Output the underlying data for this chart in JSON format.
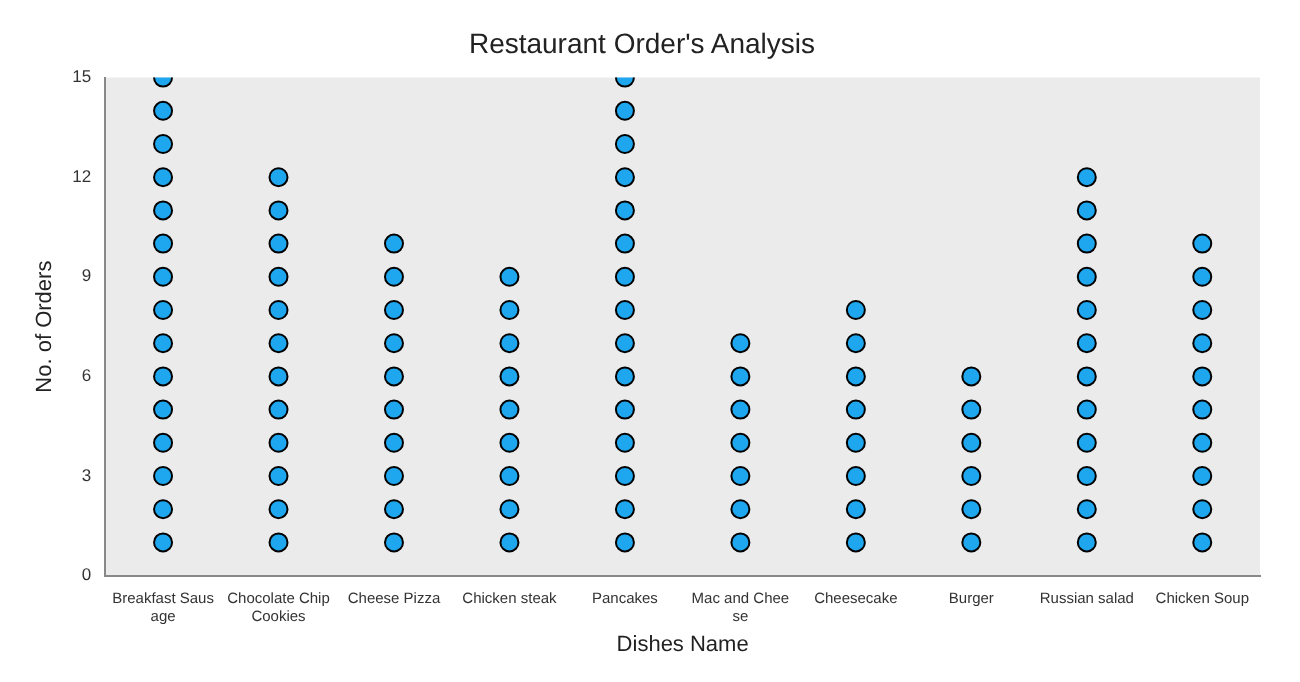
{
  "chart_data": {
    "type": "scatter",
    "title": "Restaurant Order's Analysis",
    "xlabel": "Dishes Name",
    "ylabel": "No. of Orders",
    "categories": [
      "Breakfast Saus\nage",
      "Chocolate Chip\nCookies",
      "Cheese Pizza",
      "Chicken steak",
      "Pancakes",
      "Mac and Chee\nse",
      "Cheesecake",
      "Burger",
      "Russian salad",
      "Chicken Soup"
    ],
    "ylim": [
      0,
      15
    ],
    "yticks": [
      0,
      3,
      6,
      9,
      12,
      15
    ],
    "grid": false,
    "legend": false,
    "marker": "circle",
    "series": [
      {
        "color": "#1ea7ef",
        "x": [
          "Breakfast Saus\nage",
          "Breakfast Saus\nage",
          "Breakfast Saus\nage",
          "Breakfast Saus\nage",
          "Breakfast Saus\nage",
          "Breakfast Saus\nage",
          "Breakfast Saus\nage",
          "Breakfast Saus\nage",
          "Breakfast Saus\nage",
          "Breakfast Saus\nage",
          "Breakfast Saus\nage",
          "Breakfast Saus\nage",
          "Breakfast Saus\nage",
          "Breakfast Saus\nage",
          "Breakfast Saus\nage",
          "Chocolate Chip\nCookies",
          "Chocolate Chip\nCookies",
          "Chocolate Chip\nCookies",
          "Chocolate Chip\nCookies",
          "Chocolate Chip\nCookies",
          "Chocolate Chip\nCookies",
          "Chocolate Chip\nCookies",
          "Chocolate Chip\nCookies",
          "Chocolate Chip\nCookies",
          "Chocolate Chip\nCookies",
          "Chocolate Chip\nCookies",
          "Chocolate Chip\nCookies",
          "Cheese Pizza",
          "Cheese Pizza",
          "Cheese Pizza",
          "Cheese Pizza",
          "Cheese Pizza",
          "Cheese Pizza",
          "Cheese Pizza",
          "Cheese Pizza",
          "Cheese Pizza",
          "Cheese Pizza",
          "Chicken steak",
          "Chicken steak",
          "Chicken steak",
          "Chicken steak",
          "Chicken steak",
          "Chicken steak",
          "Chicken steak",
          "Chicken steak",
          "Chicken steak",
          "Pancakes",
          "Pancakes",
          "Pancakes",
          "Pancakes",
          "Pancakes",
          "Pancakes",
          "Pancakes",
          "Pancakes",
          "Pancakes",
          "Pancakes",
          "Pancakes",
          "Pancakes",
          "Pancakes",
          "Pancakes",
          "Pancakes",
          "Mac and Chee\nse",
          "Mac and Chee\nse",
          "Mac and Chee\nse",
          "Mac and Chee\nse",
          "Mac and Chee\nse",
          "Mac and Chee\nse",
          "Mac and Chee\nse",
          "Cheesecake",
          "Cheesecake",
          "Cheesecake",
          "Cheesecake",
          "Cheesecake",
          "Cheesecake",
          "Cheesecake",
          "Cheesecake",
          "Burger",
          "Burger",
          "Burger",
          "Burger",
          "Burger",
          "Burger",
          "Russian salad",
          "Russian salad",
          "Russian salad",
          "Russian salad",
          "Russian salad",
          "Russian salad",
          "Russian salad",
          "Russian salad",
          "Russian salad",
          "Russian salad",
          "Russian salad",
          "Russian salad",
          "Chicken Soup",
          "Chicken Soup",
          "Chicken Soup",
          "Chicken Soup",
          "Chicken Soup",
          "Chicken Soup",
          "Chicken Soup",
          "Chicken Soup",
          "Chicken Soup",
          "Chicken Soup"
        ],
        "values": [
          1,
          2,
          3,
          4,
          5,
          6,
          7,
          8,
          9,
          10,
          11,
          12,
          13,
          14,
          15,
          1,
          2,
          3,
          4,
          5,
          6,
          7,
          8,
          9,
          10,
          11,
          12,
          1,
          2,
          3,
          4,
          5,
          6,
          7,
          8,
          9,
          10,
          1,
          2,
          3,
          4,
          5,
          6,
          7,
          8,
          9,
          1,
          2,
          3,
          4,
          5,
          6,
          7,
          8,
          9,
          10,
          11,
          12,
          13,
          14,
          15,
          1,
          2,
          3,
          4,
          5,
          6,
          7,
          1,
          2,
          3,
          4,
          5,
          6,
          7,
          8,
          1,
          2,
          3,
          4,
          5,
          6,
          1,
          2,
          3,
          4,
          5,
          6,
          7,
          8,
          9,
          10,
          11,
          12,
          1,
          2,
          3,
          4,
          5,
          6,
          7,
          8,
          9,
          10
        ]
      }
    ]
  }
}
